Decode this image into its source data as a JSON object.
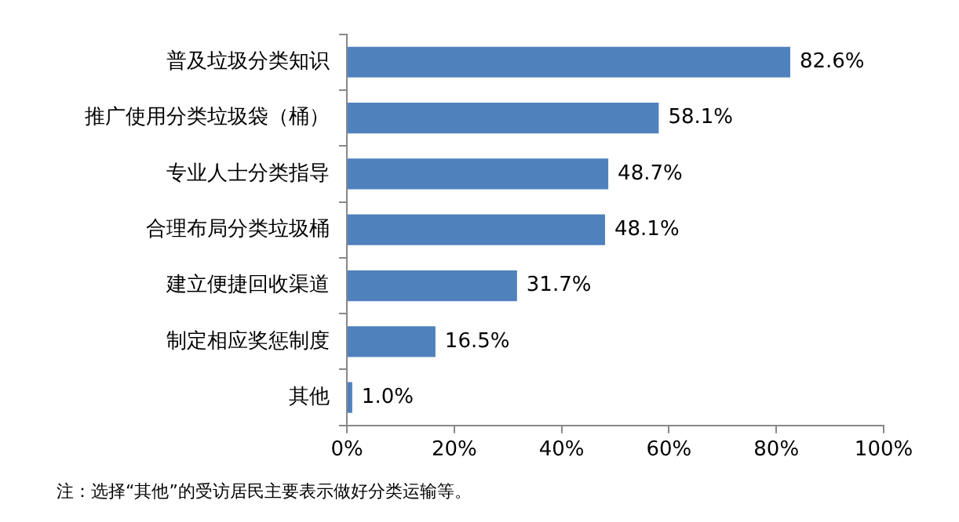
{
  "chart_data": {
    "type": "bar",
    "orientation": "horizontal",
    "categories": [
      "普及垃圾分类知识",
      "推广使用分类垃圾袋（桶）",
      "专业人士分类指导",
      "合理布局分类垃圾桶",
      "建立便捷回收渠道",
      "制定相应奖惩制度",
      "其他"
    ],
    "values": [
      82.6,
      58.1,
      48.7,
      48.1,
      31.7,
      16.5,
      1.0
    ],
    "value_labels": [
      "82.6%",
      "58.1%",
      "48.7%",
      "48.1%",
      "31.7%",
      "16.5%",
      "1.0%"
    ],
    "color": "#4f81bd",
    "xlim": [
      0,
      100
    ],
    "xticks": [
      {
        "value": 0,
        "label": "0%"
      },
      {
        "value": 20,
        "label": "20%"
      },
      {
        "value": 40,
        "label": "40%"
      },
      {
        "value": 60,
        "label": "60%"
      },
      {
        "value": 80,
        "label": "80%"
      },
      {
        "value": 100,
        "label": "100%"
      }
    ],
    "grid": false,
    "legend": false,
    "annotations": [
      "注：选择“其他”的受访居民主要表示做好分类运输等。"
    ]
  }
}
